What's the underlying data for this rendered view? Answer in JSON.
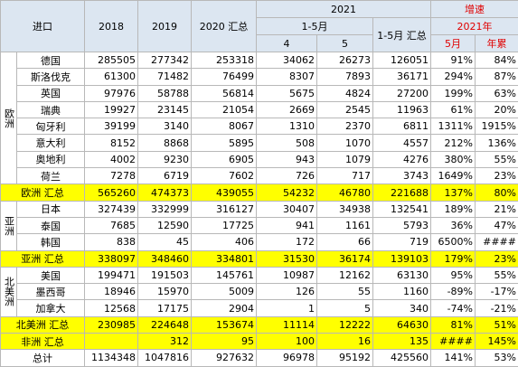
{
  "header": {
    "corner": "进口",
    "years": [
      "2018",
      "2019",
      "2020 汇总"
    ],
    "year_2021": "2021",
    "period": "1-5月",
    "months": [
      "4",
      "5"
    ],
    "period_total": "1-5月 汇总",
    "growth": "增速",
    "growth_year": "2021年",
    "growth_cols": [
      "5月",
      "年累"
    ]
  },
  "sections": [
    {
      "region": "欧洲",
      "rows": [
        {
          "name": "德国",
          "values": [
            285505,
            277342,
            253318,
            34062,
            26273,
            126051,
            "91%",
            "84%"
          ]
        },
        {
          "name": "斯洛伐克",
          "values": [
            61300,
            71482,
            76499,
            8307,
            7893,
            36171,
            "294%",
            "87%"
          ]
        },
        {
          "name": "英国",
          "values": [
            97976,
            58788,
            56814,
            5675,
            4824,
            27200,
            "199%",
            "63%"
          ]
        },
        {
          "name": "瑞典",
          "values": [
            19927,
            23145,
            21054,
            2669,
            2545,
            11963,
            "61%",
            "20%"
          ]
        },
        {
          "name": "匈牙利",
          "values": [
            39199,
            3140,
            8067,
            1310,
            2370,
            6811,
            "1311%",
            "1915%"
          ]
        },
        {
          "name": "意大利",
          "values": [
            8152,
            8868,
            5895,
            508,
            1070,
            4557,
            "212%",
            "136%"
          ]
        },
        {
          "name": "奥地利",
          "values": [
            4002,
            9230,
            6905,
            943,
            1079,
            4276,
            "380%",
            "55%"
          ]
        },
        {
          "name": "荷兰",
          "values": [
            7278,
            6719,
            7602,
            726,
            717,
            3743,
            "1649%",
            "23%"
          ]
        }
      ],
      "total": {
        "label": "欧洲 汇总",
        "values": [
          565260,
          474373,
          439055,
          54232,
          46780,
          221688,
          "137%",
          "80%"
        ],
        "highlight": true
      }
    },
    {
      "region": "亚洲",
      "rows": [
        {
          "name": "日本",
          "values": [
            327439,
            332999,
            316127,
            30407,
            34938,
            132541,
            "189%",
            "21%"
          ]
        },
        {
          "name": "泰国",
          "values": [
            7685,
            12590,
            17725,
            941,
            1161,
            5793,
            "36%",
            "47%"
          ]
        },
        {
          "name": "韩国",
          "values": [
            838,
            45,
            406,
            172,
            66,
            719,
            "6500%",
            "####"
          ]
        }
      ],
      "total": {
        "label": "亚洲 汇总",
        "values": [
          338097,
          348460,
          334801,
          31530,
          36174,
          139103,
          "179%",
          "23%"
        ],
        "highlight": true
      }
    },
    {
      "region": "北美洲",
      "rows": [
        {
          "name": "美国",
          "values": [
            199471,
            191503,
            145761,
            10987,
            12162,
            63130,
            "95%",
            "55%"
          ]
        },
        {
          "name": "墨西哥",
          "values": [
            18946,
            15970,
            5009,
            126,
            55,
            1160,
            "-89%",
            "-17%"
          ]
        },
        {
          "name": "加拿大",
          "values": [
            12568,
            17175,
            2904,
            1,
            5,
            340,
            "-74%",
            "-21%"
          ]
        }
      ],
      "total": {
        "label": "北美洲 汇总",
        "values": [
          230985,
          224648,
          153674,
          11114,
          12222,
          64630,
          "81%",
          "51%"
        ],
        "highlight": true
      }
    },
    {
      "total": {
        "label": "非洲 汇总",
        "values": [
          null,
          312,
          95,
          100,
          16,
          135,
          "####",
          "145%"
        ],
        "highlight": true
      }
    },
    {
      "total": {
        "label": "总计",
        "values": [
          1134348,
          1047816,
          927632,
          96978,
          95192,
          425560,
          "141%",
          "53%"
        ],
        "highlight": false
      }
    }
  ]
}
